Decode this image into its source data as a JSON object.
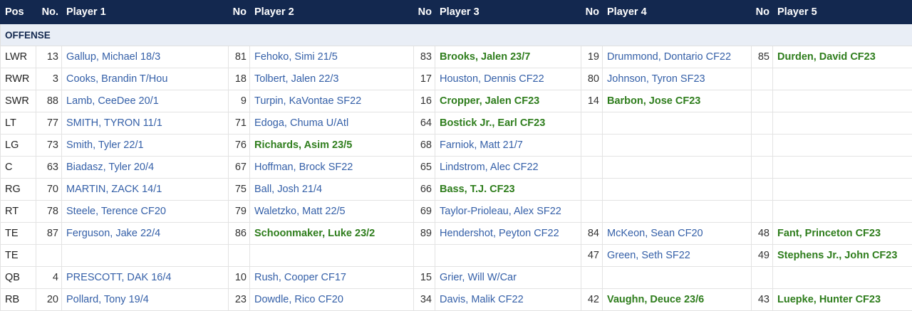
{
  "headers": [
    "Pos",
    "No.",
    "Player 1",
    "No",
    "Player 2",
    "No",
    "Player 3",
    "No",
    "Player 4",
    "No",
    "Player 5"
  ],
  "section_label": "OFFENSE",
  "rows": [
    {
      "pos": "LWR",
      "slots": [
        {
          "no": "13",
          "name": "Gallup, Michael 18/3",
          "new": false
        },
        {
          "no": "81",
          "name": "Fehoko, Simi 21/5",
          "new": false
        },
        {
          "no": "83",
          "name": "Brooks, Jalen 23/7",
          "new": true
        },
        {
          "no": "19",
          "name": "Drummond, Dontario CF22",
          "new": false
        },
        {
          "no": "85",
          "name": "Durden, David CF23",
          "new": true
        }
      ]
    },
    {
      "pos": "RWR",
      "slots": [
        {
          "no": "3",
          "name": "Cooks, Brandin T/Hou",
          "new": false
        },
        {
          "no": "18",
          "name": "Tolbert, Jalen 22/3",
          "new": false
        },
        {
          "no": "17",
          "name": "Houston, Dennis CF22",
          "new": false
        },
        {
          "no": "80",
          "name": "Johnson, Tyron SF23",
          "new": false
        },
        {
          "no": "",
          "name": "",
          "new": false
        }
      ]
    },
    {
      "pos": "SWR",
      "slots": [
        {
          "no": "88",
          "name": "Lamb, CeeDee 20/1",
          "new": false
        },
        {
          "no": "9",
          "name": "Turpin, KaVontae SF22",
          "new": false
        },
        {
          "no": "16",
          "name": "Cropper, Jalen CF23",
          "new": true
        },
        {
          "no": "14",
          "name": "Barbon, Jose CF23",
          "new": true
        },
        {
          "no": "",
          "name": "",
          "new": false
        }
      ]
    },
    {
      "pos": "LT",
      "slots": [
        {
          "no": "77",
          "name": "SMITH, TYRON 11/1",
          "new": false
        },
        {
          "no": "71",
          "name": "Edoga, Chuma U/Atl",
          "new": false
        },
        {
          "no": "64",
          "name": "Bostick Jr., Earl CF23",
          "new": true
        },
        {
          "no": "",
          "name": "",
          "new": false
        },
        {
          "no": "",
          "name": "",
          "new": false
        }
      ]
    },
    {
      "pos": "LG",
      "slots": [
        {
          "no": "73",
          "name": "Smith, Tyler 22/1",
          "new": false
        },
        {
          "no": "76",
          "name": "Richards, Asim 23/5",
          "new": true
        },
        {
          "no": "68",
          "name": "Farniok, Matt 21/7",
          "new": false
        },
        {
          "no": "",
          "name": "",
          "new": false
        },
        {
          "no": "",
          "name": "",
          "new": false
        }
      ]
    },
    {
      "pos": "C",
      "slots": [
        {
          "no": "63",
          "name": "Biadasz, Tyler 20/4",
          "new": false
        },
        {
          "no": "67",
          "name": "Hoffman, Brock SF22",
          "new": false
        },
        {
          "no": "65",
          "name": "Lindstrom, Alec CF22",
          "new": false
        },
        {
          "no": "",
          "name": "",
          "new": false
        },
        {
          "no": "",
          "name": "",
          "new": false
        }
      ]
    },
    {
      "pos": "RG",
      "slots": [
        {
          "no": "70",
          "name": "MARTIN, ZACK 14/1",
          "new": false
        },
        {
          "no": "75",
          "name": "Ball, Josh 21/4",
          "new": false
        },
        {
          "no": "66",
          "name": "Bass, T.J. CF23",
          "new": true
        },
        {
          "no": "",
          "name": "",
          "new": false
        },
        {
          "no": "",
          "name": "",
          "new": false
        }
      ]
    },
    {
      "pos": "RT",
      "slots": [
        {
          "no": "78",
          "name": "Steele, Terence CF20",
          "new": false
        },
        {
          "no": "79",
          "name": "Waletzko, Matt 22/5",
          "new": false
        },
        {
          "no": "69",
          "name": "Taylor-Prioleau, Alex SF22",
          "new": false
        },
        {
          "no": "",
          "name": "",
          "new": false
        },
        {
          "no": "",
          "name": "",
          "new": false
        }
      ]
    },
    {
      "pos": "TE",
      "slots": [
        {
          "no": "87",
          "name": "Ferguson, Jake 22/4",
          "new": false
        },
        {
          "no": "86",
          "name": "Schoonmaker, Luke 23/2",
          "new": true
        },
        {
          "no": "89",
          "name": "Hendershot, Peyton CF22",
          "new": false
        },
        {
          "no": "84",
          "name": "McKeon, Sean CF20",
          "new": false
        },
        {
          "no": "48",
          "name": "Fant, Princeton CF23",
          "new": true
        }
      ]
    },
    {
      "pos": "TE",
      "slots": [
        {
          "no": "",
          "name": "",
          "new": false
        },
        {
          "no": "",
          "name": "",
          "new": false
        },
        {
          "no": "",
          "name": "",
          "new": false
        },
        {
          "no": "47",
          "name": "Green, Seth SF22",
          "new": false
        },
        {
          "no": "49",
          "name": "Stephens Jr., John CF23",
          "new": true
        }
      ]
    },
    {
      "pos": "QB",
      "slots": [
        {
          "no": "4",
          "name": "PRESCOTT, DAK 16/4",
          "new": false
        },
        {
          "no": "10",
          "name": "Rush, Cooper CF17",
          "new": false
        },
        {
          "no": "15",
          "name": "Grier, Will W/Car",
          "new": false
        },
        {
          "no": "",
          "name": "",
          "new": false
        },
        {
          "no": "",
          "name": "",
          "new": false
        }
      ]
    },
    {
      "pos": "RB",
      "slots": [
        {
          "no": "20",
          "name": "Pollard, Tony 19/4",
          "new": false
        },
        {
          "no": "23",
          "name": "Dowdle, Rico CF20",
          "new": false
        },
        {
          "no": "34",
          "name": "Davis, Malik CF22",
          "new": false
        },
        {
          "no": "42",
          "name": "Vaughn, Deuce 23/6",
          "new": true
        },
        {
          "no": "43",
          "name": "Luepke, Hunter CF23",
          "new": true
        }
      ]
    }
  ],
  "colors": {
    "header_bg": "#13284f",
    "section_bg": "#e9eef6",
    "link": "#3560a8",
    "new_player": "#2e7d1c"
  }
}
